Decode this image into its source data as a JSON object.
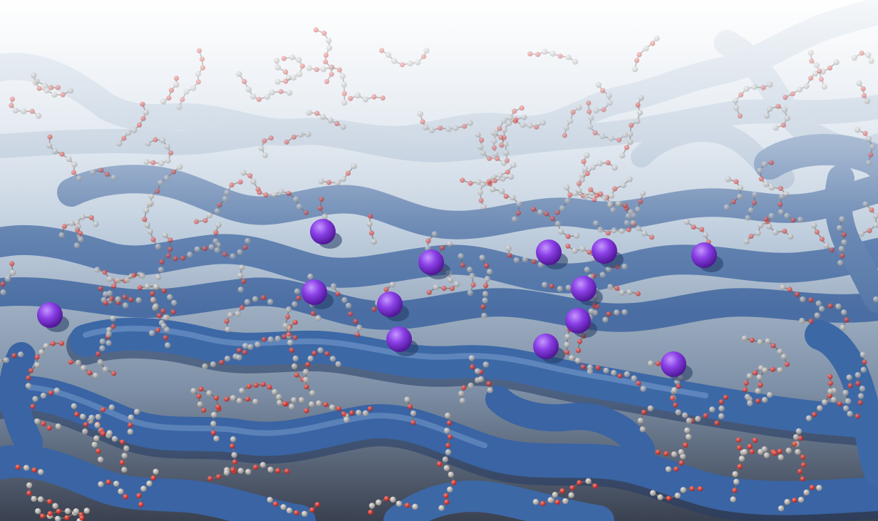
{
  "scene": {
    "subject": "molecular-simulation-render",
    "colors": {
      "sky_top": "#ffffff",
      "sky_bottom": "#b9c9da",
      "polymer_back": "#9db4cc",
      "polymer_mid": "#5b84b6",
      "polymer_front": "#3d68a6",
      "polymer_highlight": "#7a9fcf",
      "polymer_shadow": "#243b63",
      "carbon_atom": "#b7b2ad",
      "oxygen_atom": "#e0231b",
      "ion": "#7b2fd6",
      "ion_highlight": "#c597ff"
    }
  }
}
